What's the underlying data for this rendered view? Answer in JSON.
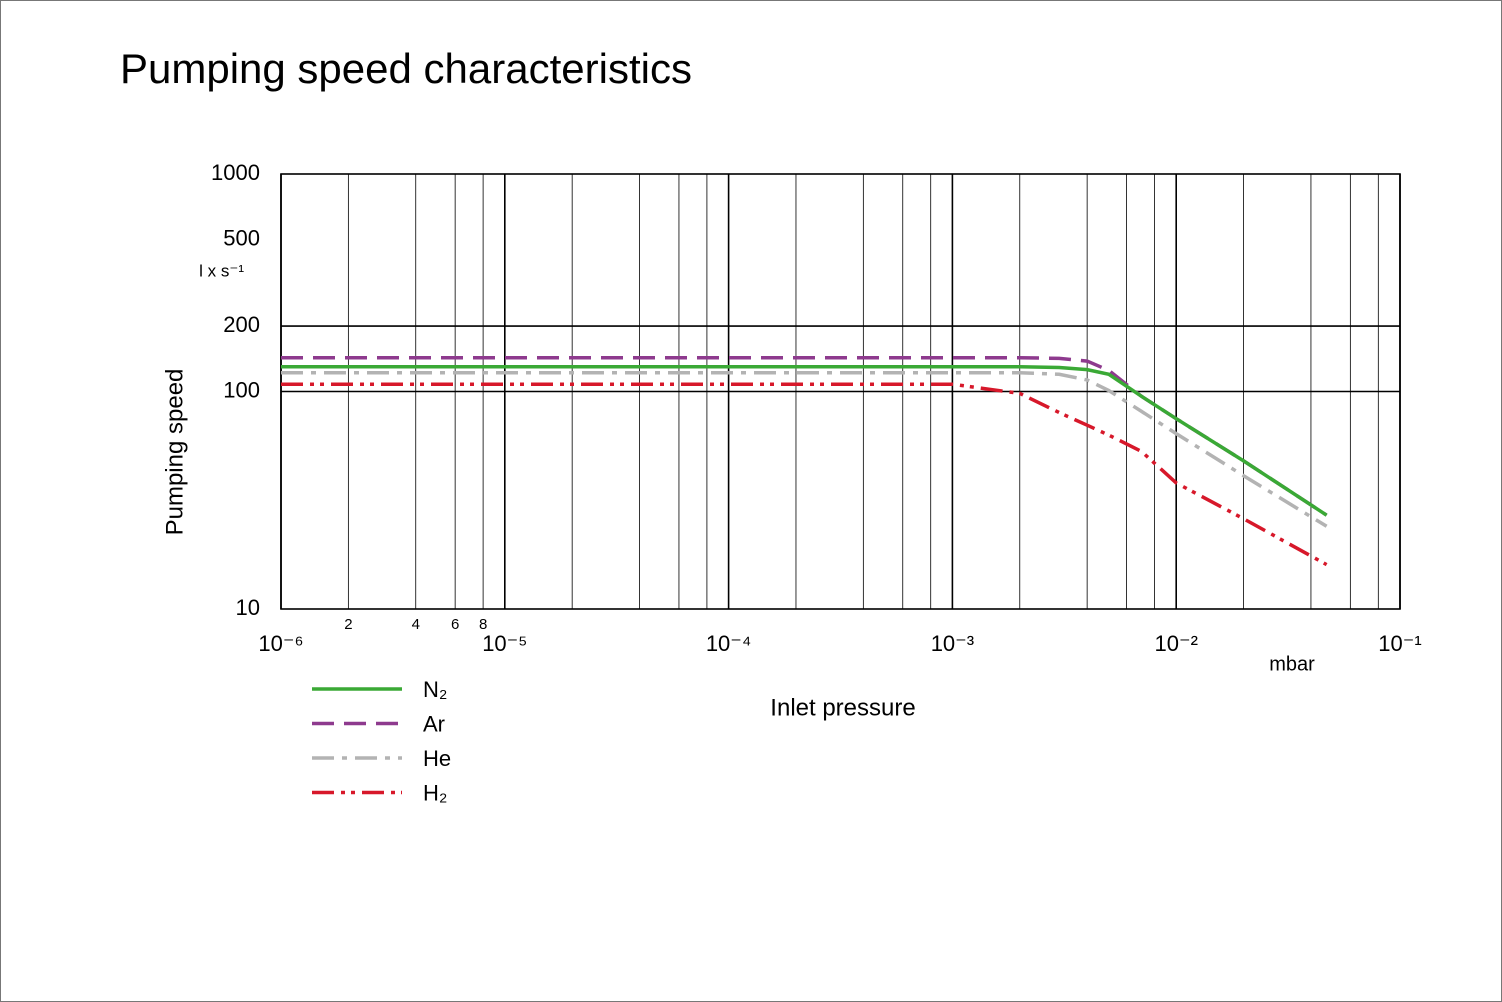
{
  "chart_data": {
    "type": "line",
    "title": "Pumping speed characteristics",
    "x_label": "Inlet pressure",
    "x_unit": "mbar",
    "y_label": "Pumping speed",
    "y_unit": "l x s⁻¹",
    "log_x": true,
    "log_y": true,
    "xlim": [
      1e-06,
      0.1
    ],
    "ylim": [
      10,
      1000
    ],
    "xticks": [
      {
        "value": 1e-06,
        "label": "10⁻⁶"
      },
      {
        "value": 1e-05,
        "label": "10⁻⁵"
      },
      {
        "value": 0.0001,
        "label": "10⁻⁴"
      },
      {
        "value": 0.001,
        "label": "10⁻³"
      },
      {
        "value": 0.01,
        "label": "10⁻²"
      },
      {
        "value": 0.1,
        "label": "10⁻¹"
      }
    ],
    "xticks_minor": [
      {
        "value": 2e-06,
        "label": "2"
      },
      {
        "value": 4e-06,
        "label": "4"
      },
      {
        "value": 6e-06,
        "label": "6"
      },
      {
        "value": 8e-06,
        "label": "8"
      }
    ],
    "minor_grid": [
      2,
      4,
      6,
      8
    ],
    "yticks": [
      10,
      100,
      200,
      500,
      1000
    ],
    "ygrid": [
      100,
      200
    ],
    "x": [
      1e-06,
      0.001,
      0.002,
      0.003,
      0.004,
      0.005,
      0.007,
      0.01,
      0.02,
      0.047
    ],
    "series": [
      {
        "name": "N₂",
        "color": "#3aa935",
        "dash": "none",
        "values": [
          130,
          130,
          130,
          129,
          126,
          120,
          95,
          75,
          48,
          27
        ]
      },
      {
        "name": "Ar",
        "color": "#8e3a8e",
        "dash": "22,10",
        "values": [
          143,
          143,
          143,
          142,
          138,
          125,
          95,
          75,
          48,
          27
        ]
      },
      {
        "name": "He",
        "color": "#b3b3b3",
        "dash": "22,8,5,8",
        "values": [
          122,
          122,
          122,
          120,
          113,
          101,
          81,
          64,
          41,
          24
        ]
      },
      {
        "name": "H₂",
        "color": "#d7182a",
        "dash": "22,7,4,6,4,7",
        "values": [
          108,
          108,
          98,
          80,
          70,
          63,
          53,
          38,
          26,
          16
        ]
      }
    ]
  }
}
